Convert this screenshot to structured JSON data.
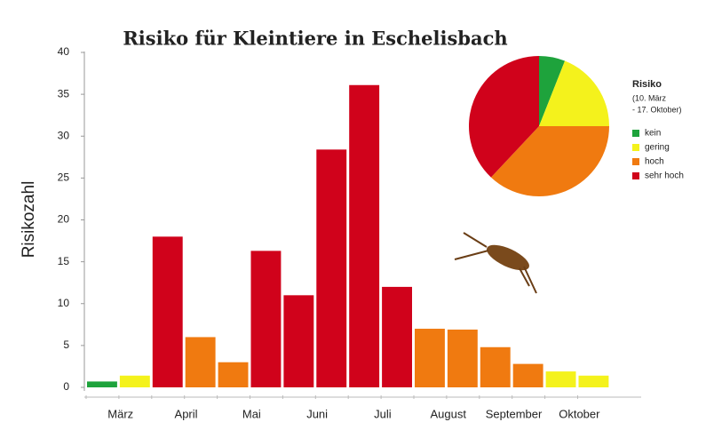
{
  "chart_data": [
    {
      "type": "bar",
      "title": "Risiko für Kleintiere in Eschelisbach",
      "y_label": "Risikozahl",
      "categories": [
        "März",
        null,
        "April",
        null,
        "Mai",
        null,
        "Juni",
        null,
        "Juli",
        null,
        "August",
        null,
        "September",
        null,
        "Oktober",
        null
      ],
      "values": [
        0.7,
        1.4,
        18,
        6,
        3,
        16.3,
        11,
        28.4,
        36.1,
        12,
        7,
        6.9,
        4.8,
        2.8,
        1.9,
        1.4
      ],
      "colors": [
        "#1ea33c",
        "#f4f21c",
        "#d0021b",
        "#f07a10",
        "#f07a10",
        "#d0021b",
        "#d0021b",
        "#d0021b",
        "#d0021b",
        "#d0021b",
        "#f07a10",
        "#f07a10",
        "#f07a10",
        "#f07a10",
        "#f4f21c",
        "#f4f21c"
      ],
      "ylim": [
        0,
        40
      ],
      "yticks": [
        0,
        5,
        10,
        15,
        20,
        25,
        30,
        35,
        40
      ]
    },
    {
      "type": "pie",
      "legend_title": "Risiko",
      "legend_subtitle": [
        "(10. März",
        "- 17. Oktober)"
      ],
      "categories": [
        "kein",
        "gering",
        "hoch",
        "sehr hoch"
      ],
      "values": [
        6,
        19,
        37,
        38
      ],
      "colors": [
        "#1ea33c",
        "#f4f21c",
        "#f07a10",
        "#d0021b"
      ]
    }
  ]
}
